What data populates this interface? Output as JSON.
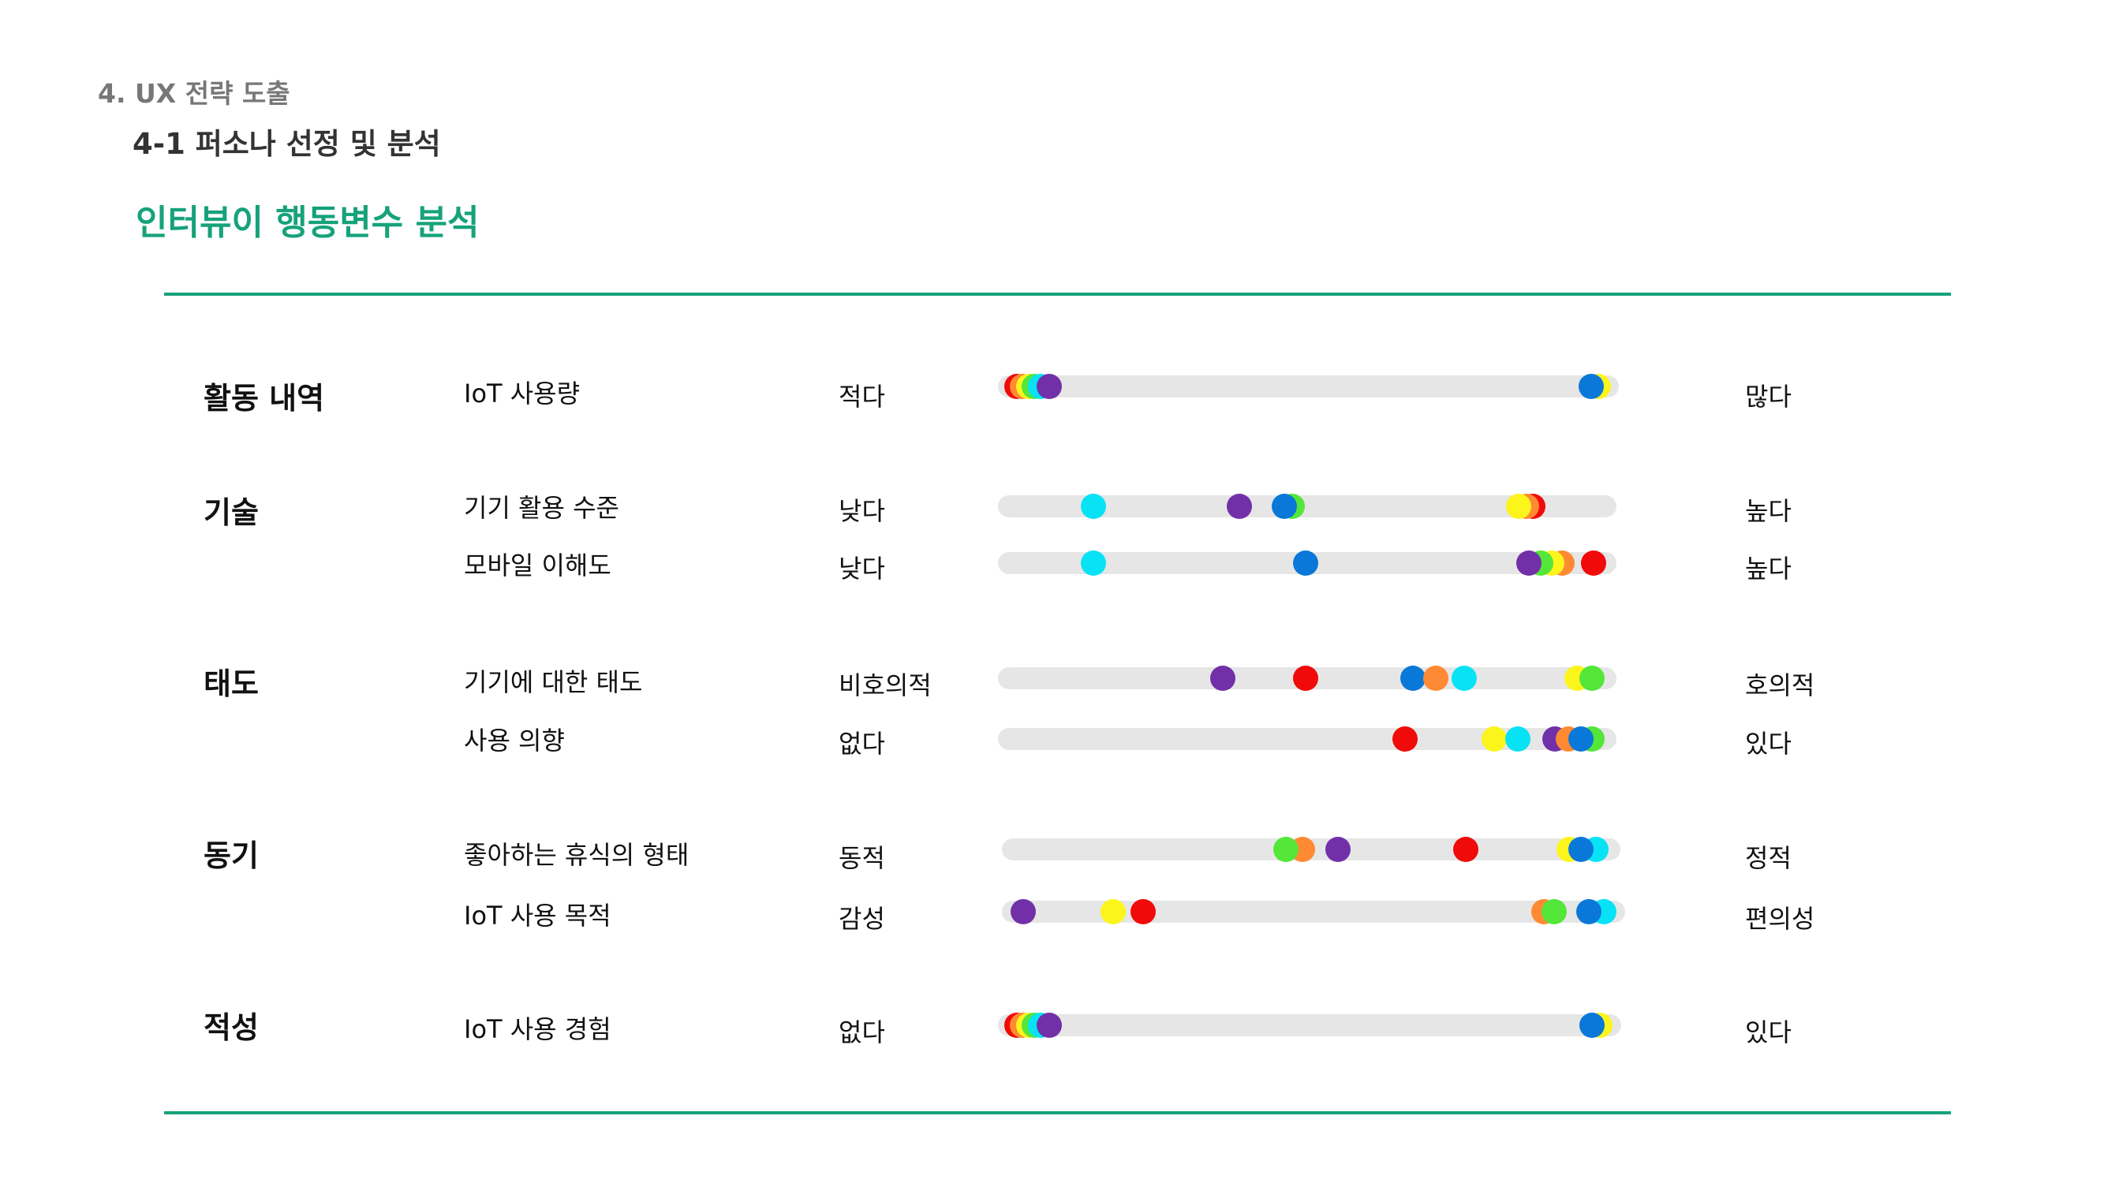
{
  "header": {
    "section": "4. UX 전략 도출",
    "subtitle": "4-1 퍼소나 선정 및 분석",
    "heading": "인터뷰이 행동변수 분석"
  },
  "colors": {
    "accent": "#16a27a",
    "track": "#e6e6e6",
    "red": "#f00a0a",
    "orange": "#ff8a33",
    "yellow": "#fcf51c",
    "green": "#55e63a",
    "cyan": "#08e2f5",
    "blue": "#0a78d8",
    "purple": "#7230a8"
  },
  "categories": [
    {
      "label": "활동 내역"
    },
    {
      "label": "기술"
    },
    {
      "label": "태도"
    },
    {
      "label": "동기"
    },
    {
      "label": "적성"
    }
  ],
  "rows": [
    {
      "category": 0,
      "variable": "IoT 사용량",
      "low": "적다",
      "high": "많다",
      "dots": [
        {
          "color": "red",
          "pos": 0.01
        },
        {
          "color": "orange",
          "pos": 0.02
        },
        {
          "color": "yellow",
          "pos": 0.03
        },
        {
          "color": "green",
          "pos": 0.04
        },
        {
          "color": "cyan",
          "pos": 0.05
        },
        {
          "color": "purple",
          "pos": 0.065
        },
        {
          "color": "yellow",
          "pos": 0.987
        },
        {
          "color": "blue",
          "pos": 0.975
        }
      ]
    },
    {
      "category": 1,
      "variable": "기기 활용 수준",
      "low": "낮다",
      "high": "높다",
      "dots": [
        {
          "color": "cyan",
          "pos": 0.14
        },
        {
          "color": "purple",
          "pos": 0.385
        },
        {
          "color": "green",
          "pos": 0.475
        },
        {
          "color": "blue",
          "pos": 0.462
        },
        {
          "color": "red",
          "pos": 0.88
        },
        {
          "color": "orange",
          "pos": 0.87
        },
        {
          "color": "yellow",
          "pos": 0.857
        }
      ]
    },
    {
      "category": 1,
      "variable": "모바일 이해도",
      "low": "낮다",
      "high": "높다",
      "dots": [
        {
          "color": "cyan",
          "pos": 0.14
        },
        {
          "color": "blue",
          "pos": 0.497
        },
        {
          "color": "orange",
          "pos": 0.93
        },
        {
          "color": "yellow",
          "pos": 0.912
        },
        {
          "color": "green",
          "pos": 0.893
        },
        {
          "color": "purple",
          "pos": 0.874
        },
        {
          "color": "red",
          "pos": 0.983
        }
      ]
    },
    {
      "category": 2,
      "variable": "기기에 대한 태도",
      "low": "비호의적",
      "high": "호의적",
      "dots": [
        {
          "color": "purple",
          "pos": 0.358
        },
        {
          "color": "red",
          "pos": 0.497
        },
        {
          "color": "blue",
          "pos": 0.678
        },
        {
          "color": "orange",
          "pos": 0.717
        },
        {
          "color": "cyan",
          "pos": 0.765
        },
        {
          "color": "yellow",
          "pos": 0.955
        },
        {
          "color": "green",
          "pos": 0.98
        }
      ]
    },
    {
      "category": 2,
      "variable": "사용 의향",
      "low": "없다",
      "high": "있다",
      "dots": [
        {
          "color": "red",
          "pos": 0.665
        },
        {
          "color": "yellow",
          "pos": 0.815
        },
        {
          "color": "cyan",
          "pos": 0.855
        },
        {
          "color": "purple",
          "pos": 0.918
        },
        {
          "color": "orange",
          "pos": 0.94
        },
        {
          "color": "green",
          "pos": 0.98
        },
        {
          "color": "blue",
          "pos": 0.962
        }
      ]
    },
    {
      "category": 3,
      "variable": "좋아하는 휴식의 형태",
      "low": "동적",
      "high": "정적",
      "dots": [
        {
          "color": "orange",
          "pos": 0.485
        },
        {
          "color": "green",
          "pos": 0.458
        },
        {
          "color": "purple",
          "pos": 0.545
        },
        {
          "color": "red",
          "pos": 0.76
        },
        {
          "color": "yellow",
          "pos": 0.935
        },
        {
          "color": "cyan",
          "pos": 0.98
        },
        {
          "color": "blue",
          "pos": 0.955
        }
      ]
    },
    {
      "category": 3,
      "variable": "IoT 사용 목적",
      "low": "감성",
      "high": "편의성",
      "dots": [
        {
          "color": "purple",
          "pos": 0.015
        },
        {
          "color": "yellow",
          "pos": 0.165
        },
        {
          "color": "red",
          "pos": 0.215
        },
        {
          "color": "orange",
          "pos": 0.885
        },
        {
          "color": "green",
          "pos": 0.903
        },
        {
          "color": "cyan",
          "pos": 0.985
        },
        {
          "color": "blue",
          "pos": 0.96
        }
      ]
    },
    {
      "category": 4,
      "variable": "IoT 사용 경험",
      "low": "없다",
      "high": "있다",
      "dots": [
        {
          "color": "red",
          "pos": 0.01
        },
        {
          "color": "orange",
          "pos": 0.02
        },
        {
          "color": "yellow",
          "pos": 0.03
        },
        {
          "color": "green",
          "pos": 0.04
        },
        {
          "color": "cyan",
          "pos": 0.05
        },
        {
          "color": "purple",
          "pos": 0.065
        },
        {
          "color": "yellow",
          "pos": 0.985
        },
        {
          "color": "blue",
          "pos": 0.972
        }
      ]
    }
  ]
}
